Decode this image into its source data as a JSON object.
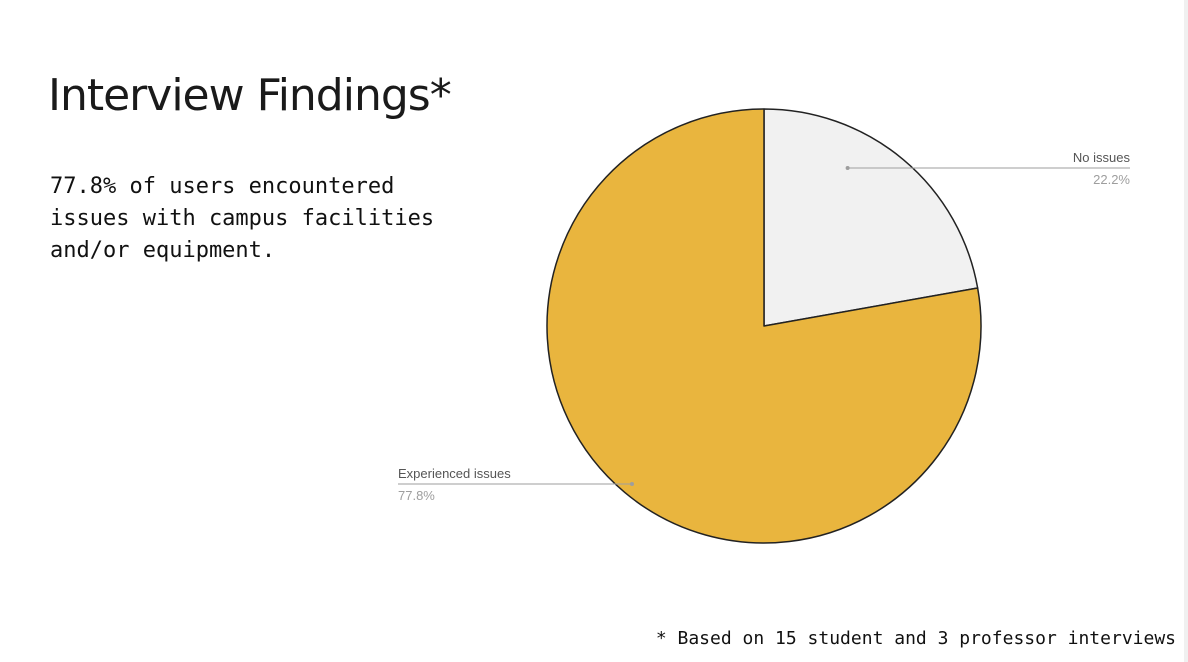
{
  "slide": {
    "title": "Interview Findings*",
    "summary": "77.8% of users encountered issues with campus facilities and/or equipment.",
    "footnote": "* Based on 15 student and 3 professor interviews"
  },
  "chart_data": {
    "type": "pie",
    "title": "",
    "slices": [
      {
        "label": "No issues",
        "value": 22.2,
        "value_label": "22.2%",
        "color": "#f1f1f1",
        "label_side": "right"
      },
      {
        "label": "Experienced issues",
        "value": 77.8,
        "value_label": "77.8%",
        "color": "#e9b53e",
        "label_side": "left"
      }
    ],
    "start_angle": "12 o'clock",
    "direction": "clockwise",
    "outline_color": "#222222",
    "legend": "none"
  }
}
